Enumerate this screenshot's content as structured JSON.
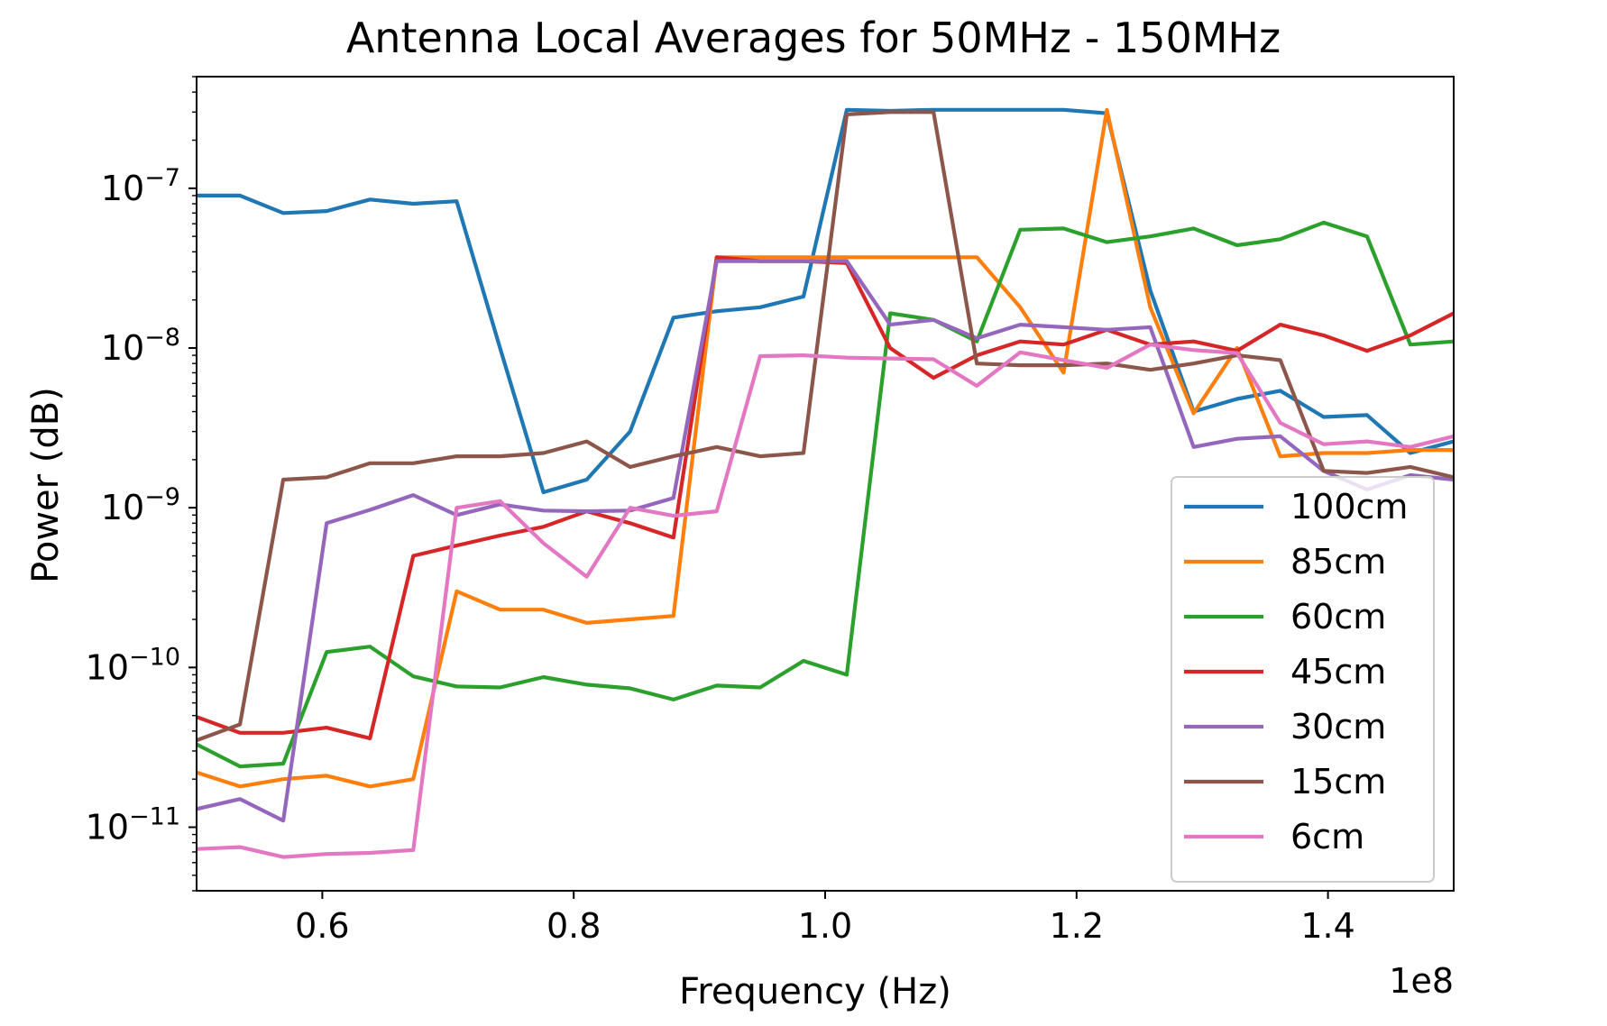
{
  "chart_data": {
    "type": "line",
    "title": "Antenna Local Averages for 50MHz - 150MHz",
    "xlabel": "Frequency (Hz)",
    "ylabel": "Power (dB)",
    "x_offset_label": "1e8",
    "xscale": "linear",
    "yscale": "log",
    "xlim": [
      50000000,
      150000000
    ],
    "ylim": [
      4e-12,
      5e-07
    ],
    "x_ticks": [
      {
        "value": 60000000,
        "label": "0.6"
      },
      {
        "value": 80000000,
        "label": "0.8"
      },
      {
        "value": 100000000,
        "label": "1.0"
      },
      {
        "value": 120000000,
        "label": "1.2"
      },
      {
        "value": 140000000,
        "label": "1.4"
      }
    ],
    "y_ticks": [
      {
        "value": 1e-11,
        "base": "10",
        "exp": "−11"
      },
      {
        "value": 1e-10,
        "base": "10",
        "exp": "−10"
      },
      {
        "value": 1e-09,
        "base": "10",
        "exp": "−9"
      },
      {
        "value": 1e-08,
        "base": "10",
        "exp": "−8"
      },
      {
        "value": 1e-07,
        "base": "10",
        "exp": "−7"
      }
    ],
    "grid": false,
    "legend_position": "lower-right",
    "x": [
      50000000,
      53448276,
      56896552,
      60344828,
      63793103,
      67241379,
      70689655,
      74137931,
      77586207,
      81034483,
      84482759,
      87931034,
      91379310,
      94827586,
      98275862,
      101724138,
      105172414,
      108620690,
      112068966,
      115517241,
      118965517,
      122413793,
      125862069,
      129310345,
      132758621,
      136206897,
      139655172,
      143103448,
      146551724,
      150000000
    ],
    "series": [
      {
        "name": "100cm",
        "color": "#1f77b4",
        "values": [
          9e-08,
          9e-08,
          7e-08,
          7.2e-08,
          8.5e-08,
          8e-08,
          8.3e-08,
          1e-08,
          1.25e-09,
          1.5e-09,
          3e-09,
          1.55e-08,
          1.7e-08,
          1.8e-08,
          2.1e-08,
          3.1e-07,
          3.05e-07,
          3.1e-07,
          3.1e-07,
          3.1e-07,
          3.1e-07,
          2.95e-07,
          2.3e-08,
          4e-09,
          4.8e-09,
          5.4e-09,
          3.7e-09,
          3.8e-09,
          2.2e-09,
          2.6e-09
        ]
      },
      {
        "name": "85cm",
        "color": "#ff7f0e",
        "values": [
          2.2e-11,
          1.8e-11,
          2e-11,
          2.1e-11,
          1.8e-11,
          2e-11,
          3e-10,
          2.3e-10,
          2.3e-10,
          1.9e-10,
          2e-10,
          2.1e-10,
          3.7e-08,
          3.7e-08,
          3.7e-08,
          3.7e-08,
          3.7e-08,
          3.7e-08,
          3.7e-08,
          1.8e-08,
          7e-09,
          3.1e-07,
          1.8e-08,
          3.9e-09,
          1e-08,
          2.1e-09,
          2.2e-09,
          2.2e-09,
          2.3e-09,
          2.3e-09
        ]
      },
      {
        "name": "60cm",
        "color": "#2ca02c",
        "values": [
          3.3e-11,
          2.4e-11,
          2.5e-11,
          1.25e-10,
          1.35e-10,
          8.8e-11,
          7.6e-11,
          7.5e-11,
          8.7e-11,
          7.8e-11,
          7.4e-11,
          6.3e-11,
          7.7e-11,
          7.5e-11,
          1.1e-10,
          9e-11,
          1.65e-08,
          1.5e-08,
          1.1e-08,
          5.5e-08,
          5.6e-08,
          4.6e-08,
          5e-08,
          5.6e-08,
          4.4e-08,
          4.8e-08,
          6.1e-08,
          5e-08,
          1.05e-08,
          1.1e-08
        ]
      },
      {
        "name": "45cm",
        "color": "#d62728",
        "values": [
          4.9e-11,
          3.9e-11,
          3.9e-11,
          4.2e-11,
          3.6e-11,
          5e-10,
          5.8e-10,
          6.7e-10,
          7.6e-10,
          9.5e-10,
          8e-10,
          6.5e-10,
          3.7e-08,
          3.5e-08,
          3.5e-08,
          3.4e-08,
          1e-08,
          6.5e-09,
          9e-09,
          1.1e-08,
          1.05e-08,
          1.3e-08,
          1.05e-08,
          1.1e-08,
          9.6e-09,
          1.4e-08,
          1.2e-08,
          9.6e-09,
          1.2e-08,
          1.65e-08
        ]
      },
      {
        "name": "30cm",
        "color": "#9467bd",
        "values": [
          1.3e-11,
          1.5e-11,
          1.1e-11,
          8e-10,
          9.7e-10,
          1.2e-09,
          9e-10,
          1.05e-09,
          9.6e-10,
          9.5e-10,
          9.6e-10,
          1.15e-09,
          3.5e-08,
          3.5e-08,
          3.5e-08,
          3.5e-08,
          1.4e-08,
          1.5e-08,
          1.15e-08,
          1.4e-08,
          1.35e-08,
          1.3e-08,
          1.35e-08,
          2.4e-09,
          2.7e-09,
          2.8e-09,
          1.7e-09,
          1.3e-09,
          1.6e-09,
          1.5e-09
        ]
      },
      {
        "name": "15cm",
        "color": "#8c564b",
        "values": [
          3.5e-11,
          4.4e-11,
          1.5e-09,
          1.55e-09,
          1.9e-09,
          1.9e-09,
          2.1e-09,
          2.1e-09,
          2.2e-09,
          2.6e-09,
          1.8e-09,
          2.1e-09,
          2.4e-09,
          2.1e-09,
          2.2e-09,
          2.9e-07,
          3e-07,
          3e-07,
          8e-09,
          7.8e-09,
          7.8e-09,
          8e-09,
          7.3e-09,
          8e-09,
          9e-09,
          8.4e-09,
          1.7e-09,
          1.65e-09,
          1.8e-09,
          1.55e-09
        ]
      },
      {
        "name": "6cm",
        "color": "#e377c2",
        "values": [
          7.3e-12,
          7.5e-12,
          6.5e-12,
          6.8e-12,
          6.9e-12,
          7.2e-12,
          1e-09,
          1.1e-09,
          6e-10,
          3.7e-10,
          1e-09,
          8.9e-10,
          9.5e-10,
          8.9e-09,
          9e-09,
          8.7e-09,
          8.6e-09,
          8.5e-09,
          5.8e-09,
          9.4e-09,
          8.4e-09,
          7.5e-09,
          1.05e-08,
          9.7e-09,
          9.3e-09,
          3.4e-09,
          2.5e-09,
          2.6e-09,
          2.4e-09,
          2.8e-09
        ]
      }
    ]
  }
}
